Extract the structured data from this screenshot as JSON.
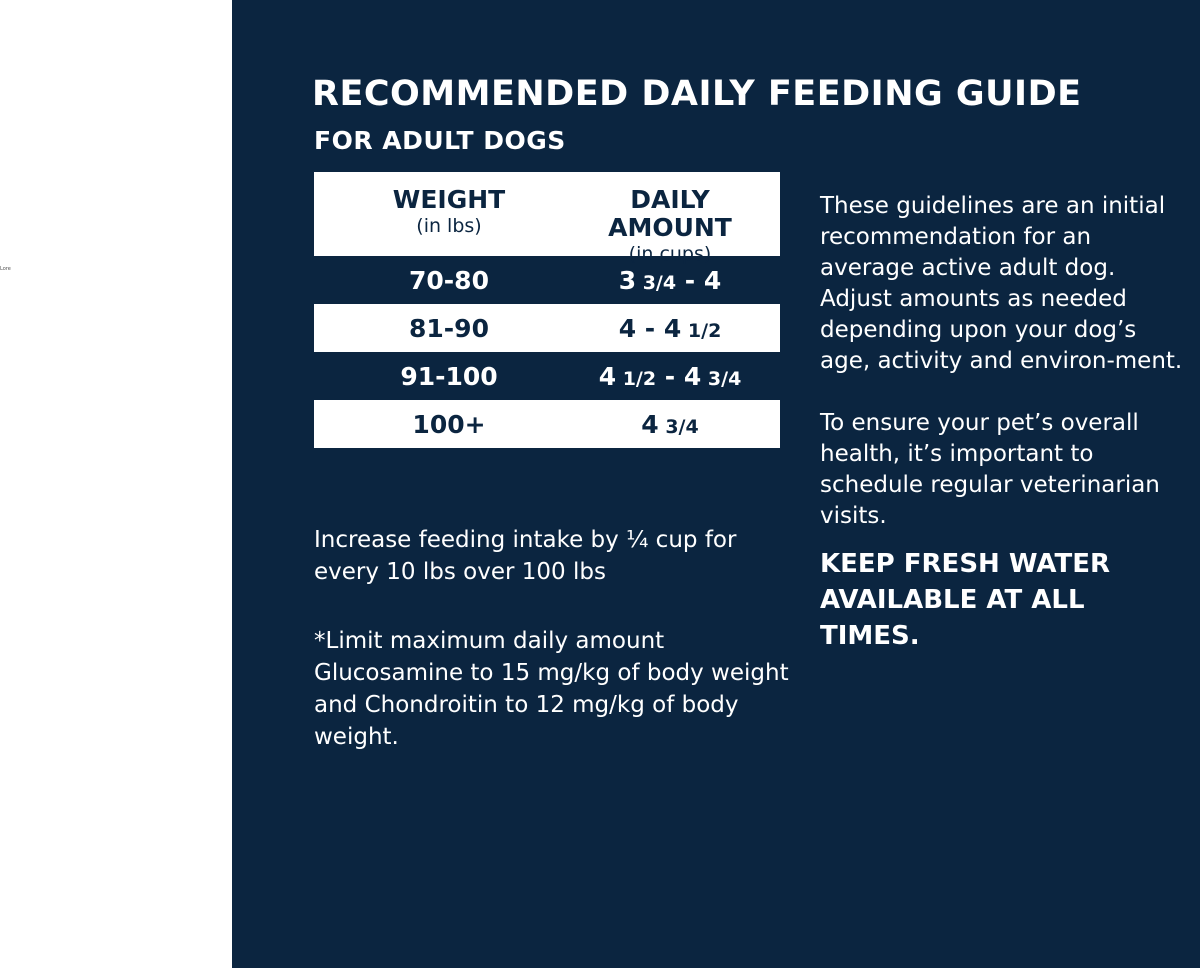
{
  "margin_text": "Lore",
  "colors": {
    "background": "#0b2540",
    "text_light": "#ffffff"
  },
  "title": "RECOMMENDED DAILY FEEDING GUIDE",
  "subtitle": "FOR ADULT DOGS",
  "table": {
    "headers": [
      {
        "label": "WEIGHT",
        "unit": "(in lbs)"
      },
      {
        "label": "DAILY AMOUNT",
        "unit": "(in cups)"
      }
    ],
    "rows": [
      {
        "weight": "70-80",
        "amount": "3 3/4 - 4"
      },
      {
        "weight": "81-90",
        "amount": "4 - 4 1/2"
      },
      {
        "weight": "91-100",
        "amount": "4 1/2 - 4 3/4"
      },
      {
        "weight": "100+",
        "amount": "4 3/4"
      }
    ]
  },
  "notes": {
    "increase": "Increase feeding intake by ¼ cup for every 10 lbs over 100 lbs",
    "limit": "*Limit maximum daily amount Glucosamine to 15 mg/kg of body weight and Chondroitin to 12 mg/kg of body weight."
  },
  "side": {
    "guidelines": "These guidelines are an initial recommendation for an average active adult dog. Adjust amounts as needed depending upon your dog’s age, activity and environ-ment.",
    "health": "To ensure your pet’s overall health, it’s important to schedule regular  veterinarian visits.",
    "water": "KEEP FRESH WATER AVAILABLE AT ALL TIMES."
  }
}
